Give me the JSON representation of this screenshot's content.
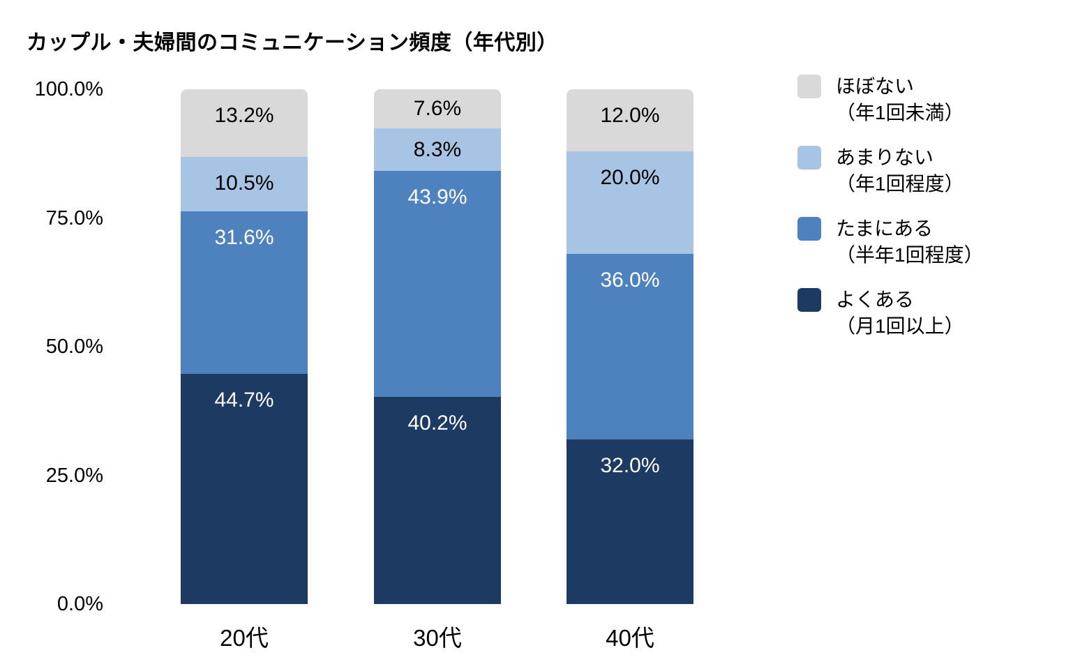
{
  "title": "カップル・夫婦間のコミュニケーション頻度（年代別）",
  "chart_data": {
    "type": "bar",
    "stacked": true,
    "percent_stacked": true,
    "title": "カップル・夫婦間のコミュニケーション頻度（年代別）",
    "categories": [
      "20代",
      "30代",
      "40代"
    ],
    "series": [
      {
        "name": "よくある",
        "sub": "（月1回以上）",
        "color": "#1d3a63",
        "label_color": "#ffffff",
        "values": [
          44.7,
          40.2,
          32.0
        ]
      },
      {
        "name": "たまにある",
        "sub": "（半年1回程度）",
        "color": "#4e82bf",
        "label_color": "#ffffff",
        "values": [
          31.6,
          43.9,
          36.0
        ]
      },
      {
        "name": "あまりない",
        "sub": "（年1回程度）",
        "color": "#a8c4e4",
        "label_color": "#000000",
        "values": [
          10.5,
          8.3,
          20.0
        ]
      },
      {
        "name": "ほぼない",
        "sub": "（年1回未満）",
        "color": "#d9d9d9",
        "label_color": "#000000",
        "values": [
          13.2,
          7.6,
          12.0
        ]
      }
    ],
    "data_labels": [
      [
        "44.7%",
        "40.2%",
        "32.0%"
      ],
      [
        "31.6%",
        "43.9%",
        "36.0%"
      ],
      [
        "10.5%",
        "8.3%",
        "20.0%"
      ],
      [
        "13.2%",
        "7.6%",
        "12.0%"
      ]
    ],
    "xlabel": "",
    "ylabel": "",
    "ylim": [
      0,
      100
    ],
    "y_ticks": [
      "100.0%",
      "75.0%",
      "50.0%",
      "25.0%",
      "0.0%"
    ],
    "grid": false,
    "legend_position": "right",
    "legend": [
      {
        "label": "ほぼない",
        "sub": "（年1回未満）",
        "color": "#d9d9d9"
      },
      {
        "label": "あまりない",
        "sub": "（年1回程度）",
        "color": "#a8c4e4"
      },
      {
        "label": "たまにある",
        "sub": "（半年1回程度）",
        "color": "#4e82bf"
      },
      {
        "label": "よくある",
        "sub": "（月1回以上）",
        "color": "#1d3a63"
      }
    ]
  },
  "layout_colors": {
    "background": "#ffffff",
    "text": "#000000"
  }
}
